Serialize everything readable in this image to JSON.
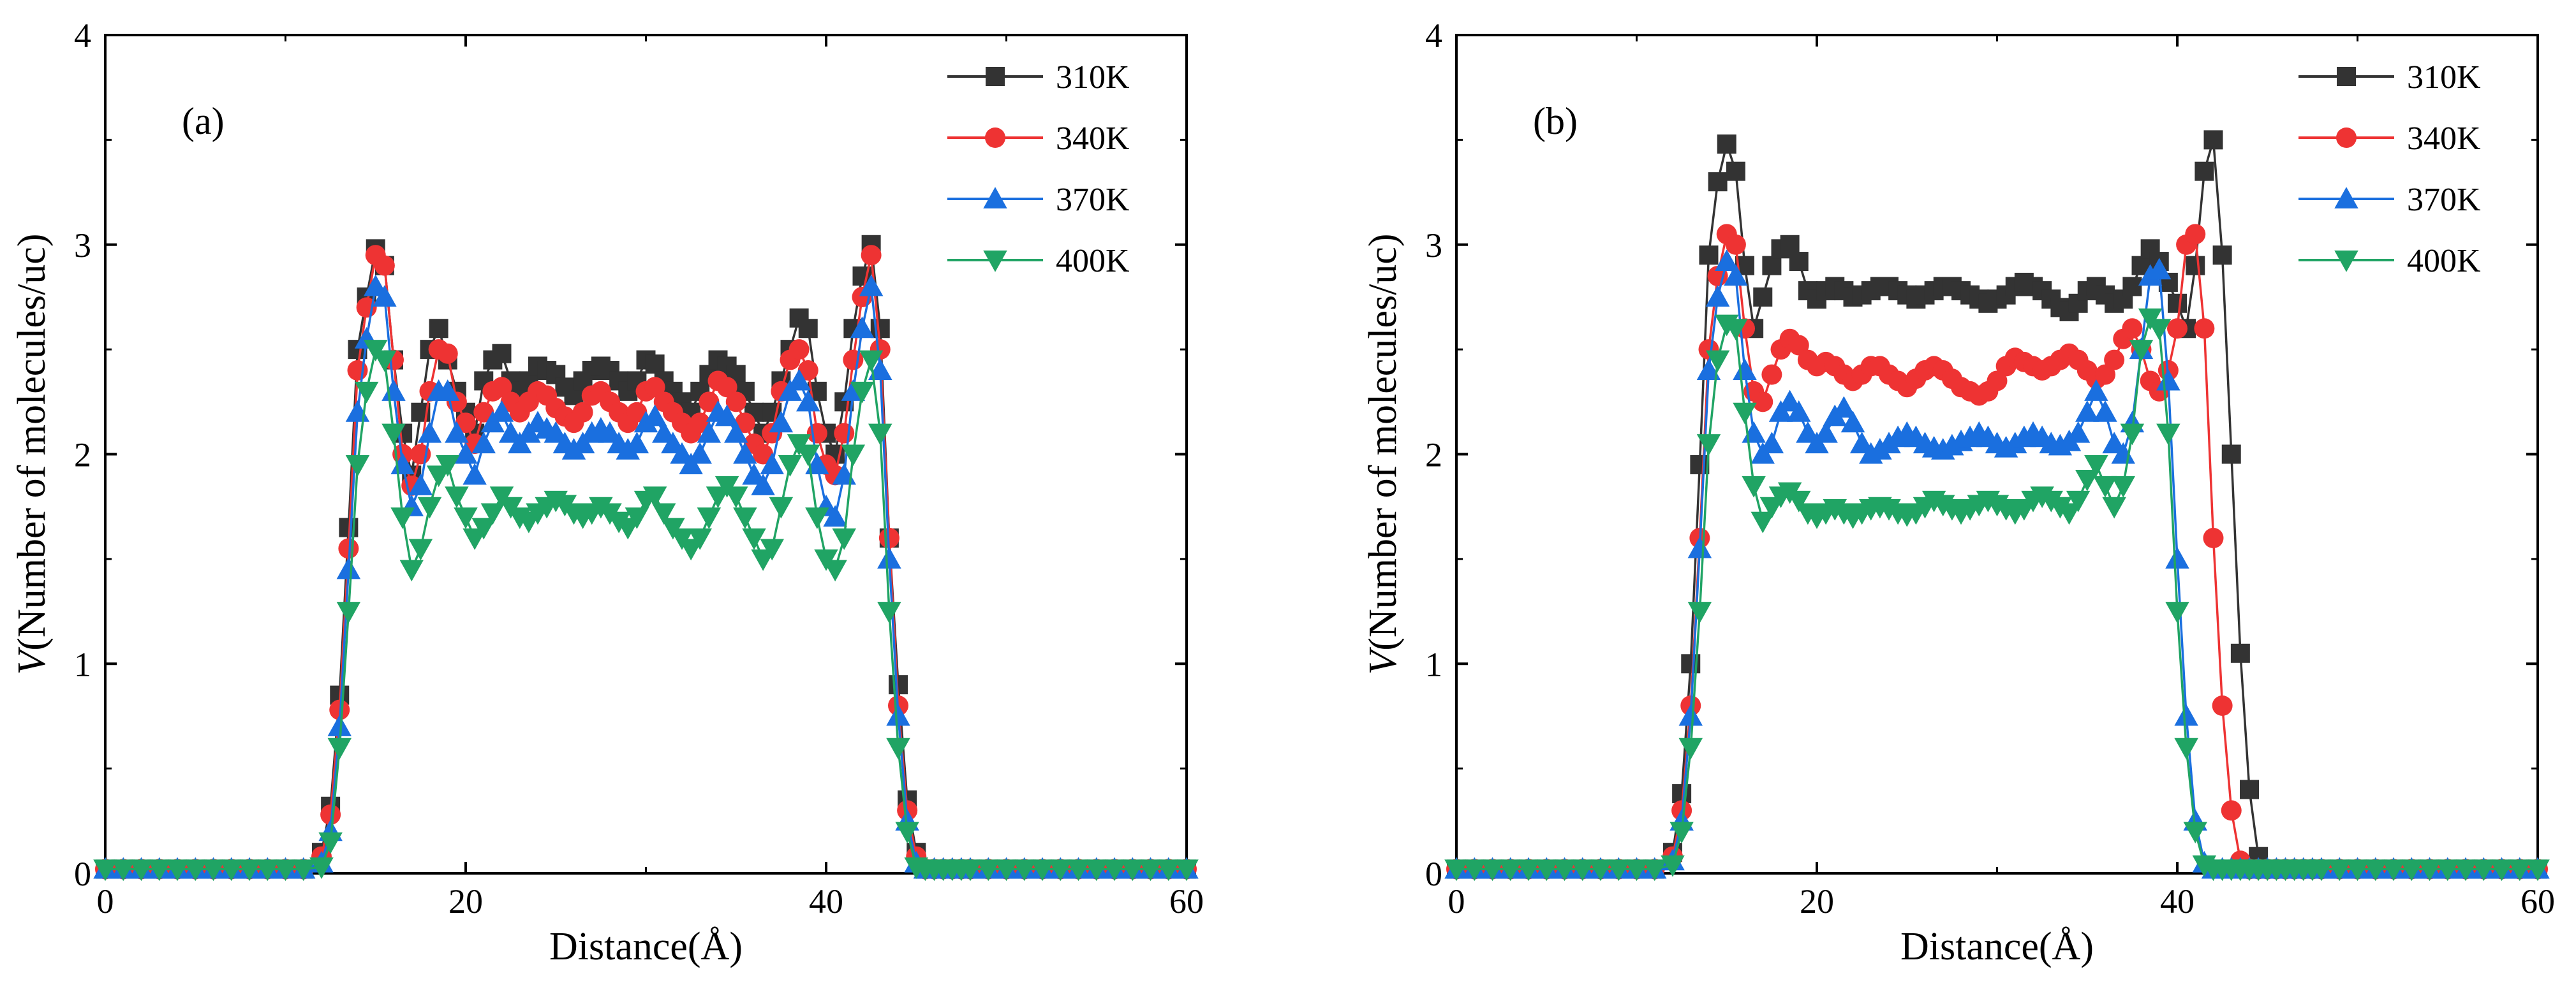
{
  "figure": {
    "colors": {
      "310K": "#333333",
      "340K": "#ee3333",
      "370K": "#1a6fdf",
      "400K": "#20a464"
    }
  },
  "chart_data": [
    {
      "panel_label": "(a)",
      "type": "line",
      "xlabel": "Distance(Å)",
      "ylabel_italic": "V",
      "ylabel_rest": "(Number of molecules/uc)",
      "xlim": [
        0,
        60
      ],
      "ylim": [
        0,
        4
      ],
      "xticks": [
        "0",
        "20",
        "40",
        "60"
      ],
      "yticks": [
        "0",
        "1",
        "2",
        "3",
        "4"
      ],
      "legend_position": "top-right",
      "x": [
        0,
        1,
        2,
        3,
        4,
        5,
        6,
        7,
        8,
        9,
        10,
        11,
        12,
        12.5,
        13,
        13.5,
        14,
        14.5,
        15,
        15.5,
        16,
        16.5,
        17,
        17.5,
        18,
        18.5,
        19,
        19.5,
        20,
        20.5,
        21,
        21.5,
        22,
        22.5,
        23,
        23.5,
        24,
        24.5,
        25,
        25.5,
        26,
        26.5,
        27,
        27.5,
        28,
        28.5,
        29,
        29.5,
        30,
        30.5,
        31,
        31.5,
        32,
        32.5,
        33,
        33.5,
        34,
        34.5,
        35,
        35.5,
        36,
        36.5,
        37,
        37.5,
        38,
        38.5,
        39,
        39.5,
        40,
        40.5,
        41,
        41.5,
        42,
        42.5,
        43,
        43.5,
        44,
        44.5,
        45,
        45.5,
        46,
        46.5,
        47,
        47.5,
        48,
        49,
        50,
        51,
        52,
        53,
        54,
        55,
        56,
        57,
        58,
        59,
        60
      ],
      "series": [
        {
          "name": "310K",
          "marker": "square",
          "values": [
            0.02,
            0.02,
            0.02,
            0.02,
            0.02,
            0.02,
            0.02,
            0.02,
            0.02,
            0.02,
            0.02,
            0.02,
            0.1,
            0.32,
            0.85,
            1.65,
            2.5,
            2.75,
            2.98,
            2.9,
            2.45,
            2.1,
            1.9,
            2.2,
            2.5,
            2.6,
            2.45,
            2.3,
            2.2,
            2.1,
            2.35,
            2.45,
            2.48,
            2.35,
            2.3,
            2.35,
            2.42,
            2.4,
            2.38,
            2.32,
            2.28,
            2.35,
            2.4,
            2.42,
            2.4,
            2.35,
            2.3,
            2.35,
            2.45,
            2.43,
            2.35,
            2.3,
            2.25,
            2.2,
            2.3,
            2.38,
            2.45,
            2.42,
            2.38,
            2.3,
            2.2,
            2.1,
            2.2,
            2.35,
            2.5,
            2.65,
            2.6,
            2.3,
            2.1,
            2.0,
            2.25,
            2.6,
            2.85,
            3.0,
            2.6,
            1.6,
            0.9,
            0.35,
            0.1,
            0.02,
            0.02,
            0.02,
            0.02,
            0.02,
            0.02,
            0.02,
            0.02,
            0.02,
            0.02,
            0.02,
            0.02,
            0.02,
            0.02,
            0.02,
            0.02,
            0.02,
            0.02
          ]
        },
        {
          "name": "340K",
          "marker": "circle",
          "values": [
            0.02,
            0.02,
            0.02,
            0.02,
            0.02,
            0.02,
            0.02,
            0.02,
            0.02,
            0.02,
            0.02,
            0.02,
            0.08,
            0.28,
            0.78,
            1.55,
            2.4,
            2.7,
            2.95,
            2.9,
            2.45,
            2.0,
            1.85,
            2.0,
            2.3,
            2.5,
            2.48,
            2.25,
            2.15,
            2.05,
            2.2,
            2.3,
            2.32,
            2.25,
            2.2,
            2.25,
            2.3,
            2.28,
            2.22,
            2.18,
            2.15,
            2.2,
            2.28,
            2.3,
            2.25,
            2.2,
            2.15,
            2.2,
            2.3,
            2.32,
            2.25,
            2.2,
            2.15,
            2.1,
            2.15,
            2.25,
            2.35,
            2.32,
            2.25,
            2.15,
            2.05,
            2.0,
            2.1,
            2.3,
            2.45,
            2.5,
            2.4,
            2.1,
            1.95,
            1.9,
            2.1,
            2.45,
            2.75,
            2.95,
            2.5,
            1.6,
            0.8,
            0.3,
            0.08,
            0.02,
            0.02,
            0.02,
            0.02,
            0.02,
            0.02,
            0.02,
            0.02,
            0.02,
            0.02,
            0.02,
            0.02,
            0.02,
            0.02,
            0.02,
            0.02,
            0.02,
            0.02
          ]
        },
        {
          "name": "370K",
          "marker": "triangle-up",
          "values": [
            0.02,
            0.02,
            0.02,
            0.02,
            0.02,
            0.02,
            0.02,
            0.02,
            0.02,
            0.02,
            0.02,
            0.02,
            0.05,
            0.2,
            0.7,
            1.45,
            2.2,
            2.55,
            2.8,
            2.75,
            2.3,
            1.95,
            1.75,
            1.85,
            2.1,
            2.3,
            2.3,
            2.1,
            2.0,
            1.9,
            2.05,
            2.15,
            2.2,
            2.1,
            2.05,
            2.1,
            2.15,
            2.12,
            2.1,
            2.05,
            2.02,
            2.05,
            2.1,
            2.12,
            2.1,
            2.05,
            2.02,
            2.05,
            2.15,
            2.18,
            2.1,
            2.05,
            2.0,
            1.95,
            2.0,
            2.1,
            2.2,
            2.18,
            2.1,
            2.0,
            1.9,
            1.85,
            1.95,
            2.15,
            2.3,
            2.35,
            2.25,
            1.95,
            1.75,
            1.7,
            1.9,
            2.3,
            2.6,
            2.8,
            2.4,
            1.5,
            0.75,
            0.25,
            0.05,
            0.02,
            0.02,
            0.02,
            0.02,
            0.02,
            0.02,
            0.02,
            0.02,
            0.02,
            0.02,
            0.02,
            0.02,
            0.02,
            0.02,
            0.02,
            0.02,
            0.02,
            0.02
          ]
        },
        {
          "name": "400K",
          "marker": "triangle-down",
          "values": [
            0.02,
            0.02,
            0.02,
            0.02,
            0.02,
            0.02,
            0.02,
            0.02,
            0.02,
            0.02,
            0.02,
            0.02,
            0.03,
            0.15,
            0.6,
            1.25,
            1.95,
            2.3,
            2.5,
            2.45,
            2.1,
            1.7,
            1.45,
            1.55,
            1.75,
            1.9,
            1.95,
            1.8,
            1.7,
            1.6,
            1.65,
            1.72,
            1.8,
            1.75,
            1.7,
            1.68,
            1.72,
            1.75,
            1.78,
            1.76,
            1.72,
            1.7,
            1.72,
            1.75,
            1.72,
            1.68,
            1.65,
            1.7,
            1.78,
            1.8,
            1.72,
            1.65,
            1.6,
            1.55,
            1.6,
            1.7,
            1.8,
            1.85,
            1.8,
            1.7,
            1.6,
            1.5,
            1.55,
            1.75,
            1.95,
            2.05,
            2.0,
            1.7,
            1.5,
            1.45,
            1.6,
            2.0,
            2.3,
            2.45,
            2.1,
            1.25,
            0.6,
            0.2,
            0.03,
            0.02,
            0.02,
            0.02,
            0.02,
            0.02,
            0.02,
            0.02,
            0.02,
            0.02,
            0.02,
            0.02,
            0.02,
            0.02,
            0.02,
            0.02,
            0.02,
            0.02,
            0.02
          ]
        }
      ]
    },
    {
      "panel_label": "(b)",
      "type": "line",
      "xlabel": "Distance(Å)",
      "ylabel_italic": "V",
      "ylabel_rest": "(Number of molecules/uc)",
      "xlim": [
        0,
        60
      ],
      "ylim": [
        0,
        4
      ],
      "xticks": [
        "0",
        "20",
        "40",
        "60"
      ],
      "yticks": [
        "0",
        "1",
        "2",
        "3",
        "4"
      ],
      "legend_position": "top-right",
      "x": [
        0,
        1,
        2,
        3,
        4,
        5,
        6,
        7,
        8,
        9,
        10,
        11,
        12,
        12.5,
        13,
        13.5,
        14,
        14.5,
        15,
        15.5,
        16,
        16.5,
        17,
        17.5,
        18,
        18.5,
        19,
        19.5,
        20,
        20.5,
        21,
        21.5,
        22,
        22.5,
        23,
        23.5,
        24,
        24.5,
        25,
        25.5,
        26,
        26.5,
        27,
        27.5,
        28,
        28.5,
        29,
        29.5,
        30,
        30.5,
        31,
        31.5,
        32,
        32.5,
        33,
        33.5,
        34,
        34.5,
        35,
        35.5,
        36,
        36.5,
        37,
        37.5,
        38,
        38.5,
        39,
        39.5,
        40,
        40.5,
        41,
        41.5,
        42,
        42.5,
        43,
        43.5,
        44,
        44.5,
        45,
        45.5,
        46,
        46.5,
        47,
        47.5,
        48,
        49,
        50,
        51,
        52,
        53,
        54,
        55,
        56,
        57,
        58,
        59,
        60
      ],
      "series": [
        {
          "name": "310K",
          "marker": "square",
          "values": [
            0.02,
            0.02,
            0.02,
            0.02,
            0.02,
            0.02,
            0.02,
            0.02,
            0.02,
            0.02,
            0.02,
            0.02,
            0.1,
            0.38,
            1.0,
            1.95,
            2.95,
            3.3,
            3.48,
            3.35,
            2.9,
            2.6,
            2.75,
            2.9,
            2.98,
            3.0,
            2.92,
            2.78,
            2.74,
            2.78,
            2.8,
            2.78,
            2.75,
            2.76,
            2.78,
            2.8,
            2.8,
            2.78,
            2.76,
            2.74,
            2.76,
            2.78,
            2.8,
            2.8,
            2.78,
            2.76,
            2.74,
            2.72,
            2.74,
            2.76,
            2.8,
            2.82,
            2.8,
            2.78,
            2.74,
            2.7,
            2.68,
            2.72,
            2.78,
            2.8,
            2.76,
            2.72,
            2.74,
            2.8,
            2.9,
            2.98,
            2.92,
            2.82,
            2.72,
            2.6,
            2.9,
            3.35,
            3.5,
            2.95,
            2.0,
            1.05,
            0.4,
            0.08,
            0.02,
            0.02,
            0.02,
            0.02,
            0.02,
            0.02,
            0.02,
            0.02,
            0.02,
            0.02,
            0.02,
            0.02,
            0.02,
            0.02,
            0.02,
            0.02,
            0.02,
            0.02,
            0.02
          ]
        },
        {
          "name": "340K",
          "marker": "circle",
          "values": [
            0.02,
            0.02,
            0.02,
            0.02,
            0.02,
            0.02,
            0.02,
            0.02,
            0.02,
            0.02,
            0.02,
            0.02,
            0.08,
            0.3,
            0.8,
            1.6,
            2.5,
            2.85,
            3.05,
            3.0,
            2.6,
            2.3,
            2.25,
            2.38,
            2.5,
            2.55,
            2.52,
            2.45,
            2.42,
            2.44,
            2.42,
            2.38,
            2.35,
            2.38,
            2.42,
            2.42,
            2.38,
            2.35,
            2.32,
            2.36,
            2.4,
            2.42,
            2.4,
            2.36,
            2.32,
            2.3,
            2.28,
            2.3,
            2.35,
            2.42,
            2.46,
            2.44,
            2.42,
            2.4,
            2.42,
            2.45,
            2.48,
            2.45,
            2.4,
            2.36,
            2.38,
            2.45,
            2.55,
            2.6,
            2.5,
            2.35,
            2.3,
            2.4,
            2.6,
            3.0,
            3.05,
            2.6,
            1.6,
            0.8,
            0.3,
            0.06,
            0.02,
            0.02,
            0.02,
            0.02,
            0.02,
            0.02,
            0.02,
            0.02,
            0.02,
            0.02,
            0.02,
            0.02,
            0.02,
            0.02,
            0.02,
            0.02,
            0.02,
            0.02,
            0.02,
            0.02,
            0.02
          ]
        },
        {
          "name": "370K",
          "marker": "triangle-up",
          "values": [
            0.02,
            0.02,
            0.02,
            0.02,
            0.02,
            0.02,
            0.02,
            0.02,
            0.02,
            0.02,
            0.02,
            0.02,
            0.06,
            0.25,
            0.75,
            1.55,
            2.4,
            2.75,
            2.92,
            2.85,
            2.4,
            2.1,
            2.0,
            2.05,
            2.2,
            2.25,
            2.2,
            2.1,
            2.05,
            2.1,
            2.18,
            2.22,
            2.15,
            2.05,
            2.0,
            2.02,
            2.05,
            2.08,
            2.1,
            2.08,
            2.05,
            2.03,
            2.02,
            2.04,
            2.06,
            2.08,
            2.1,
            2.08,
            2.05,
            2.03,
            2.05,
            2.08,
            2.1,
            2.08,
            2.05,
            2.04,
            2.06,
            2.1,
            2.2,
            2.3,
            2.2,
            2.05,
            2.0,
            2.15,
            2.5,
            2.85,
            2.88,
            2.35,
            1.5,
            0.75,
            0.25,
            0.05,
            0.02,
            0.02,
            0.02,
            0.02,
            0.02,
            0.02,
            0.02,
            0.02,
            0.02,
            0.02,
            0.02,
            0.02,
            0.02,
            0.02,
            0.02,
            0.02,
            0.02,
            0.02,
            0.02,
            0.02,
            0.02,
            0.02,
            0.02,
            0.02,
            0.02
          ]
        },
        {
          "name": "400K",
          "marker": "triangle-down",
          "values": [
            0.02,
            0.02,
            0.02,
            0.02,
            0.02,
            0.02,
            0.02,
            0.02,
            0.02,
            0.02,
            0.02,
            0.02,
            0.04,
            0.2,
            0.6,
            1.25,
            2.05,
            2.45,
            2.62,
            2.6,
            2.2,
            1.85,
            1.68,
            1.75,
            1.8,
            1.82,
            1.78,
            1.72,
            1.7,
            1.72,
            1.74,
            1.72,
            1.7,
            1.72,
            1.74,
            1.75,
            1.74,
            1.72,
            1.71,
            1.72,
            1.75,
            1.78,
            1.76,
            1.74,
            1.72,
            1.74,
            1.76,
            1.78,
            1.76,
            1.74,
            1.72,
            1.74,
            1.78,
            1.8,
            1.78,
            1.75,
            1.72,
            1.78,
            1.88,
            1.95,
            1.85,
            1.75,
            1.85,
            2.1,
            2.5,
            2.65,
            2.6,
            2.1,
            1.25,
            0.6,
            0.2,
            0.04,
            0.02,
            0.02,
            0.02,
            0.02,
            0.02,
            0.02,
            0.02,
            0.02,
            0.02,
            0.02,
            0.02,
            0.02,
            0.02,
            0.02,
            0.02,
            0.02,
            0.02,
            0.02,
            0.02,
            0.02,
            0.02,
            0.02,
            0.02,
            0.02,
            0.02
          ]
        }
      ]
    }
  ]
}
